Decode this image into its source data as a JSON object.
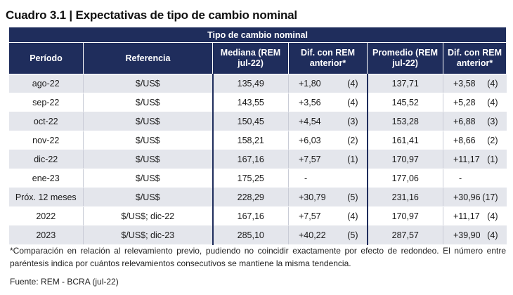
{
  "title": "Cuadro 3.1 | Expectativas de tipo de cambio nominal",
  "table": {
    "band_label": "Tipo de cambio nominal",
    "headers": {
      "periodo": "Período",
      "referencia": "Referencia",
      "mediana": "Mediana (REM jul-22)",
      "dif_mediana": "Dif. con REM anterior*",
      "promedio": "Promedio (REM jul-22)",
      "dif_promedio": "Dif. con REM anterior*"
    },
    "rows": [
      {
        "periodo": "ago-22",
        "referencia": "$/US$",
        "mediana": "135,49",
        "dif_med": "+1,80",
        "dif_med_n": "(4)",
        "promedio": "137,71",
        "dif_prom": "+3,58",
        "dif_prom_n": "(4)"
      },
      {
        "periodo": "sep-22",
        "referencia": "$/US$",
        "mediana": "143,55",
        "dif_med": "+3,56",
        "dif_med_n": "(4)",
        "promedio": "145,52",
        "dif_prom": "+5,28",
        "dif_prom_n": "(4)"
      },
      {
        "periodo": "oct-22",
        "referencia": "$/US$",
        "mediana": "150,45",
        "dif_med": "+4,54",
        "dif_med_n": "(3)",
        "promedio": "153,28",
        "dif_prom": "+6,88",
        "dif_prom_n": "(3)"
      },
      {
        "periodo": "nov-22",
        "referencia": "$/US$",
        "mediana": "158,21",
        "dif_med": "+6,03",
        "dif_med_n": "(2)",
        "promedio": "161,41",
        "dif_prom": "+8,66",
        "dif_prom_n": "(2)"
      },
      {
        "periodo": "dic-22",
        "referencia": "$/US$",
        "mediana": "167,16",
        "dif_med": "+7,57",
        "dif_med_n": "(1)",
        "promedio": "170,97",
        "dif_prom": "+11,17",
        "dif_prom_n": "(1)"
      },
      {
        "periodo": "ene-23",
        "referencia": "$/US$",
        "mediana": "175,25",
        "dif_med": "-",
        "dif_med_n": "",
        "promedio": "177,06",
        "dif_prom": "-",
        "dif_prom_n": ""
      },
      {
        "periodo": "Próx. 12 meses",
        "referencia": "$/US$",
        "mediana": "228,29",
        "dif_med": "+30,79",
        "dif_med_n": "(5)",
        "promedio": "231,16",
        "dif_prom": "+30,96",
        "dif_prom_n": "(17)"
      },
      {
        "periodo": "2022",
        "referencia": "$/US$; dic-22",
        "mediana": "167,16",
        "dif_med": "+7,57",
        "dif_med_n": "(4)",
        "promedio": "170,97",
        "dif_prom": "+11,17",
        "dif_prom_n": "(4)"
      },
      {
        "periodo": "2023",
        "referencia": "$/US$; dic-23",
        "mediana": "285,10",
        "dif_med": "+40,22",
        "dif_med_n": "(5)",
        "promedio": "287,57",
        "dif_prom": "+39,90",
        "dif_prom_n": "(4)"
      }
    ]
  },
  "note": "*Comparación en relación al relevamiento previo, pudiendo no coincidir exactamente por efecto de redondeo. El número entre paréntesis indica por cuántos relevamientos consecutivos se mantiene la misma tendencia.",
  "source": "Fuente: REM - BCRA (jul-22)",
  "colors": {
    "header_bg": "#1f2d5c",
    "stripe": "#e4e6ec"
  }
}
